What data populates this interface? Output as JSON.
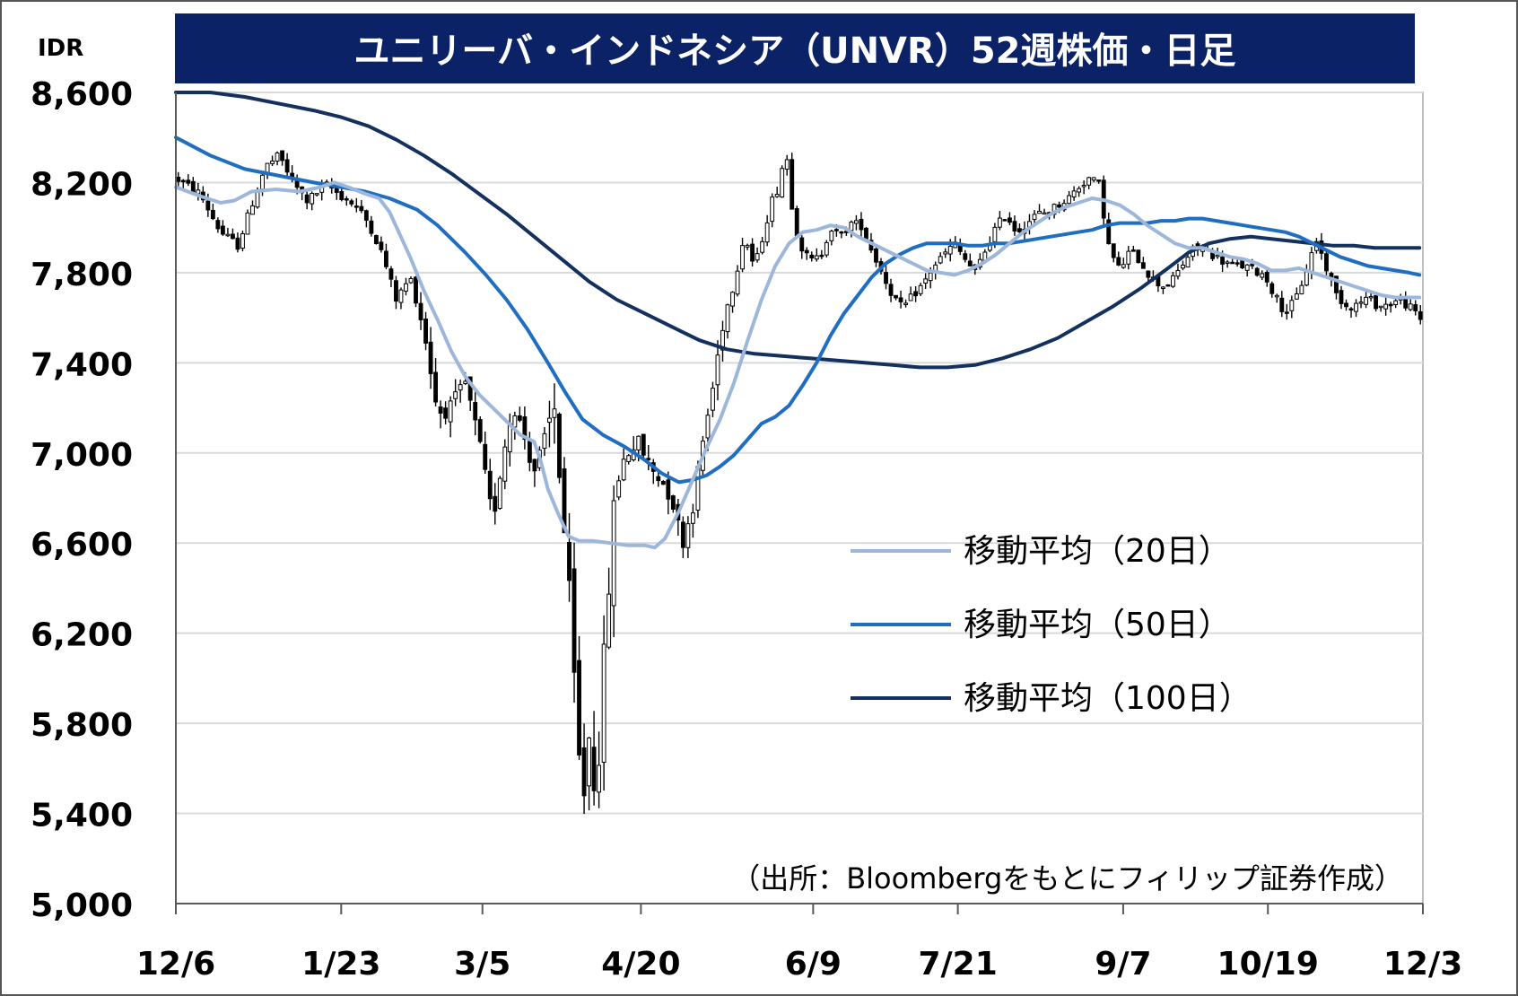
{
  "chart_data": {
    "type": "candlestick",
    "title": "ユニリーバ・インドネシア（UNVR）52週株価・日足",
    "y_unit": "IDR",
    "ylim": [
      5000,
      8600
    ],
    "y_ticks": [
      "5,000",
      "5,400",
      "5,800",
      "6,200",
      "6,600",
      "7,000",
      "7,400",
      "7,800",
      "8,200",
      "8,600"
    ],
    "x_ticks": [
      "12/6",
      "1/23",
      "3/5",
      "4/20",
      "6/9",
      "7/21",
      "9/7",
      "10/19",
      "12/3"
    ],
    "x_tick_days": [
      0,
      48,
      89,
      135,
      185,
      227,
      275,
      317,
      362
    ],
    "x_range_days": [
      0,
      362
    ],
    "grid": true,
    "legend_position": "right",
    "source_note": "（出所：Bloombergをもとにフィリップ証券作成）",
    "colors": {
      "title_bg": "#0b2366",
      "title_text": "#ffffff",
      "grid": "#d9d9d9",
      "axis": "#595959",
      "candle_up_fill": "#ffffff",
      "candle_down_fill": "#000000",
      "candle_line": "#000000",
      "ma20": "#9db7db",
      "ma50": "#1f6ec1",
      "ma100": "#14305e"
    },
    "price_anchors": [
      [
        0,
        8220
      ],
      [
        7,
        8150
      ],
      [
        13,
        7980
      ],
      [
        18,
        7920
      ],
      [
        22,
        8100
      ],
      [
        26,
        8270
      ],
      [
        30,
        8320
      ],
      [
        34,
        8200
      ],
      [
        38,
        8120
      ],
      [
        44,
        8190
      ],
      [
        48,
        8140
      ],
      [
        52,
        8100
      ],
      [
        56,
        8020
      ],
      [
        60,
        7880
      ],
      [
        64,
        7680
      ],
      [
        68,
        7780
      ],
      [
        72,
        7550
      ],
      [
        76,
        7180
      ],
      [
        80,
        7200
      ],
      [
        84,
        7310
      ],
      [
        88,
        7050
      ],
      [
        92,
        6700
      ],
      [
        95,
        7000
      ],
      [
        98,
        7220
      ],
      [
        101,
        7080
      ],
      [
        104,
        6920
      ],
      [
        107,
        7050
      ],
      [
        110,
        7200
      ],
      [
        112,
        6800
      ],
      [
        114,
        6400
      ],
      [
        116,
        5880
      ],
      [
        118,
        5420
      ],
      [
        120,
        5750
      ],
      [
        122,
        5480
      ],
      [
        124,
        6000
      ],
      [
        126,
        6500
      ],
      [
        128,
        6900
      ],
      [
        131,
        7000
      ],
      [
        134,
        7050
      ],
      [
        138,
        6930
      ],
      [
        141,
        6880
      ],
      [
        144,
        6800
      ],
      [
        147,
        6600
      ],
      [
        150,
        6760
      ],
      [
        153,
        7050
      ],
      [
        156,
        7300
      ],
      [
        159,
        7600
      ],
      [
        162,
        7750
      ],
      [
        165,
        7970
      ],
      [
        168,
        7820
      ],
      [
        171,
        8000
      ],
      [
        173,
        8120
      ],
      [
        175,
        8180
      ],
      [
        177,
        8360
      ],
      [
        179,
        8080
      ],
      [
        181,
        7930
      ],
      [
        184,
        7850
      ],
      [
        187,
        7870
      ],
      [
        190,
        8000
      ],
      [
        193,
        7960
      ],
      [
        196,
        8020
      ],
      [
        199,
        8010
      ],
      [
        202,
        7900
      ],
      [
        205,
        7800
      ],
      [
        208,
        7700
      ],
      [
        211,
        7640
      ],
      [
        214,
        7700
      ],
      [
        217,
        7750
      ],
      [
        220,
        7830
      ],
      [
        223,
        7880
      ],
      [
        226,
        7930
      ],
      [
        229,
        7860
      ],
      [
        232,
        7800
      ],
      [
        235,
        7900
      ],
      [
        238,
        8000
      ],
      [
        241,
        8060
      ],
      [
        244,
        7980
      ],
      [
        247,
        8020
      ],
      [
        250,
        8060
      ],
      [
        253,
        8070
      ],
      [
        256,
        8100
      ],
      [
        259,
        8130
      ],
      [
        262,
        8180
      ],
      [
        265,
        8220
      ],
      [
        268,
        8190
      ],
      [
        271,
        7900
      ],
      [
        274,
        7810
      ],
      [
        277,
        7900
      ],
      [
        280,
        7850
      ],
      [
        283,
        7780
      ],
      [
        286,
        7740
      ],
      [
        289,
        7760
      ],
      [
        292,
        7830
      ],
      [
        295,
        7900
      ],
      [
        298,
        7910
      ],
      [
        301,
        7880
      ],
      [
        304,
        7850
      ],
      [
        307,
        7830
      ],
      [
        310,
        7830
      ],
      [
        313,
        7810
      ],
      [
        316,
        7790
      ],
      [
        319,
        7700
      ],
      [
        322,
        7620
      ],
      [
        325,
        7680
      ],
      [
        328,
        7800
      ],
      [
        331,
        7950
      ],
      [
        334,
        7820
      ],
      [
        337,
        7700
      ],
      [
        340,
        7650
      ],
      [
        343,
        7660
      ],
      [
        346,
        7690
      ],
      [
        349,
        7650
      ],
      [
        352,
        7660
      ],
      [
        355,
        7680
      ],
      [
        358,
        7650
      ],
      [
        361,
        7600
      ],
      [
        362,
        7570
      ]
    ],
    "ma_points": {
      "ma20": [
        [
          0,
          8180
        ],
        [
          7,
          8140
        ],
        [
          13,
          8110
        ],
        [
          17,
          8120
        ],
        [
          22,
          8160
        ],
        [
          29,
          8170
        ],
        [
          36,
          8160
        ],
        [
          42,
          8180
        ],
        [
          46,
          8200
        ],
        [
          50,
          8180
        ],
        [
          55,
          8150
        ],
        [
          59,
          8130
        ],
        [
          62,
          8070
        ],
        [
          65,
          7970
        ],
        [
          68,
          7870
        ],
        [
          72,
          7720
        ],
        [
          76,
          7590
        ],
        [
          80,
          7450
        ],
        [
          84,
          7340
        ],
        [
          88,
          7260
        ],
        [
          92,
          7200
        ],
        [
          96,
          7140
        ],
        [
          100,
          7080
        ],
        [
          104,
          7050
        ],
        [
          106,
          6960
        ],
        [
          108,
          6840
        ],
        [
          111,
          6730
        ],
        [
          114,
          6630
        ],
        [
          117,
          6610
        ],
        [
          121,
          6610
        ],
        [
          126,
          6600
        ],
        [
          131,
          6590
        ],
        [
          136,
          6590
        ],
        [
          139,
          6580
        ],
        [
          142,
          6620
        ],
        [
          146,
          6740
        ],
        [
          150,
          6880
        ],
        [
          154,
          7020
        ],
        [
          158,
          7150
        ],
        [
          162,
          7310
        ],
        [
          166,
          7500
        ],
        [
          170,
          7680
        ],
        [
          174,
          7830
        ],
        [
          178,
          7930
        ],
        [
          182,
          7980
        ],
        [
          186,
          7990
        ],
        [
          190,
          8010
        ],
        [
          194,
          8000
        ],
        [
          198,
          7960
        ],
        [
          202,
          7930
        ],
        [
          206,
          7900
        ],
        [
          210,
          7870
        ],
        [
          214,
          7840
        ],
        [
          218,
          7810
        ],
        [
          222,
          7800
        ],
        [
          226,
          7790
        ],
        [
          230,
          7810
        ],
        [
          234,
          7840
        ],
        [
          238,
          7880
        ],
        [
          242,
          7930
        ],
        [
          246,
          7980
        ],
        [
          250,
          8020
        ],
        [
          254,
          8060
        ],
        [
          258,
          8090
        ],
        [
          262,
          8110
        ],
        [
          266,
          8130
        ],
        [
          270,
          8120
        ],
        [
          274,
          8100
        ],
        [
          278,
          8060
        ],
        [
          282,
          8010
        ],
        [
          286,
          7970
        ],
        [
          290,
          7930
        ],
        [
          294,
          7910
        ],
        [
          298,
          7910
        ],
        [
          302,
          7890
        ],
        [
          306,
          7870
        ],
        [
          310,
          7860
        ],
        [
          314,
          7840
        ],
        [
          318,
          7810
        ],
        [
          322,
          7810
        ],
        [
          326,
          7820
        ],
        [
          330,
          7800
        ],
        [
          334,
          7780
        ],
        [
          338,
          7760
        ],
        [
          342,
          7740
        ],
        [
          346,
          7720
        ],
        [
          350,
          7700
        ],
        [
          354,
          7690
        ],
        [
          358,
          7690
        ],
        [
          361,
          7690
        ]
      ],
      "ma50": [
        [
          0,
          8400
        ],
        [
          10,
          8320
        ],
        [
          20,
          8260
        ],
        [
          30,
          8230
        ],
        [
          40,
          8200
        ],
        [
          48,
          8180
        ],
        [
          55,
          8160
        ],
        [
          62,
          8130
        ],
        [
          70,
          8080
        ],
        [
          76,
          8010
        ],
        [
          84,
          7890
        ],
        [
          90,
          7790
        ],
        [
          96,
          7680
        ],
        [
          102,
          7550
        ],
        [
          108,
          7400
        ],
        [
          113,
          7270
        ],
        [
          118,
          7150
        ],
        [
          124,
          7080
        ],
        [
          130,
          7030
        ],
        [
          136,
          6970
        ],
        [
          141,
          6910
        ],
        [
          146,
          6870
        ],
        [
          150,
          6880
        ],
        [
          154,
          6900
        ],
        [
          158,
          6940
        ],
        [
          162,
          6990
        ],
        [
          166,
          7060
        ],
        [
          170,
          7130
        ],
        [
          174,
          7160
        ],
        [
          178,
          7210
        ],
        [
          182,
          7300
        ],
        [
          186,
          7400
        ],
        [
          190,
          7520
        ],
        [
          194,
          7620
        ],
        [
          198,
          7700
        ],
        [
          202,
          7780
        ],
        [
          206,
          7840
        ],
        [
          210,
          7880
        ],
        [
          214,
          7910
        ],
        [
          218,
          7930
        ],
        [
          222,
          7930
        ],
        [
          226,
          7930
        ],
        [
          230,
          7920
        ],
        [
          234,
          7920
        ],
        [
          238,
          7930
        ],
        [
          242,
          7930
        ],
        [
          246,
          7940
        ],
        [
          250,
          7950
        ],
        [
          254,
          7960
        ],
        [
          258,
          7970
        ],
        [
          262,
          7980
        ],
        [
          266,
          7990
        ],
        [
          270,
          8010
        ],
        [
          274,
          8020
        ],
        [
          278,
          8020
        ],
        [
          282,
          8020
        ],
        [
          286,
          8030
        ],
        [
          290,
          8030
        ],
        [
          294,
          8040
        ],
        [
          298,
          8040
        ],
        [
          302,
          8030
        ],
        [
          306,
          8020
        ],
        [
          310,
          8010
        ],
        [
          314,
          8000
        ],
        [
          318,
          7990
        ],
        [
          322,
          7980
        ],
        [
          326,
          7960
        ],
        [
          330,
          7930
        ],
        [
          334,
          7900
        ],
        [
          338,
          7870
        ],
        [
          342,
          7850
        ],
        [
          346,
          7830
        ],
        [
          350,
          7820
        ],
        [
          354,
          7810
        ],
        [
          358,
          7800
        ],
        [
          361,
          7790
        ]
      ],
      "ma100": [
        [
          0,
          8630
        ],
        [
          10,
          8600
        ],
        [
          20,
          8580
        ],
        [
          30,
          8550
        ],
        [
          40,
          8520
        ],
        [
          48,
          8490
        ],
        [
          56,
          8450
        ],
        [
          64,
          8390
        ],
        [
          72,
          8320
        ],
        [
          80,
          8240
        ],
        [
          88,
          8150
        ],
        [
          96,
          8060
        ],
        [
          104,
          7960
        ],
        [
          112,
          7860
        ],
        [
          120,
          7760
        ],
        [
          128,
          7680
        ],
        [
          136,
          7620
        ],
        [
          144,
          7560
        ],
        [
          152,
          7500
        ],
        [
          160,
          7460
        ],
        [
          168,
          7440
        ],
        [
          176,
          7430
        ],
        [
          184,
          7420
        ],
        [
          192,
          7410
        ],
        [
          200,
          7400
        ],
        [
          208,
          7390
        ],
        [
          216,
          7380
        ],
        [
          224,
          7380
        ],
        [
          232,
          7390
        ],
        [
          240,
          7420
        ],
        [
          248,
          7460
        ],
        [
          256,
          7510
        ],
        [
          264,
          7580
        ],
        [
          272,
          7650
        ],
        [
          280,
          7730
        ],
        [
          288,
          7820
        ],
        [
          294,
          7890
        ],
        [
          300,
          7930
        ],
        [
          306,
          7950
        ],
        [
          312,
          7960
        ],
        [
          318,
          7950
        ],
        [
          324,
          7940
        ],
        [
          330,
          7930
        ],
        [
          336,
          7920
        ],
        [
          342,
          7920
        ],
        [
          348,
          7910
        ],
        [
          354,
          7910
        ],
        [
          361,
          7910
        ]
      ]
    },
    "series": [
      {
        "name": "移動平均（20日）",
        "type": "line",
        "color": "#9db7db"
      },
      {
        "name": "移動平均（50日）",
        "type": "line",
        "color": "#1f6ec1"
      },
      {
        "name": "移動平均（100日）",
        "type": "line",
        "color": "#14305e"
      }
    ],
    "ohlc_generation_note": ""
  }
}
